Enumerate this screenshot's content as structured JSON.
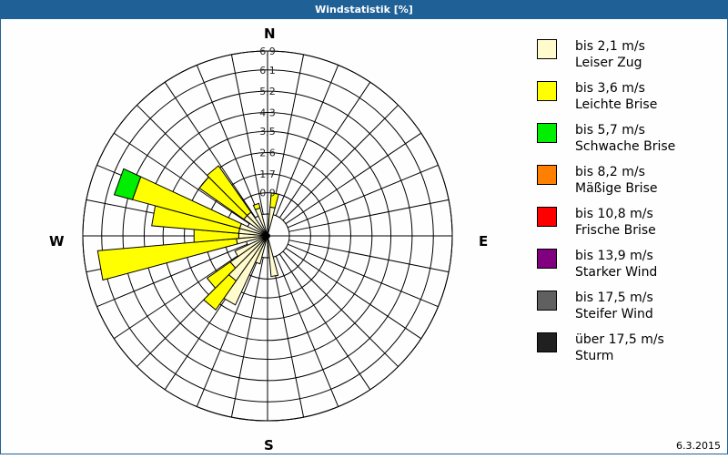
{
  "window": {
    "title": "Windstatistik [%]"
  },
  "compass": {
    "n": "N",
    "e": "E",
    "s": "S",
    "w": "W"
  },
  "footer": {
    "date": "6.3.2015"
  },
  "legend": [
    {
      "range": "bis 2,1 m/s",
      "name": "Leiser Zug",
      "color": "#fffbcc"
    },
    {
      "range": "bis 3,6 m/s",
      "name": "Leichte Brise",
      "color": "#ffff00"
    },
    {
      "range": "bis 5,7 m/s",
      "name": "Schwache Brise",
      "color": "#00ee00"
    },
    {
      "range": "bis 8,2 m/s",
      "name": "Mäßige Brise",
      "color": "#ff8000"
    },
    {
      "range": "bis 10,8 m/s",
      "name": "Frische Brise",
      "color": "#ff0000"
    },
    {
      "range": "bis 13,9 m/s",
      "name": "Starker Wind",
      "color": "#800080"
    },
    {
      "range": "bis 17,5 m/s",
      "name": "Steifer Wind",
      "color": "#606060"
    },
    {
      "range": "über 17,5 m/s",
      "name": "Sturm",
      "color": "#202020"
    }
  ],
  "chart_data": {
    "type": "wind-rose",
    "title": "Windstatistik [%]",
    "radial_unit": "%",
    "radial_ticks": [
      "0,9",
      "1,7",
      "2,6",
      "3,5",
      "4,3",
      "5,2",
      "6,1",
      "6,9"
    ],
    "radial_tick_values": [
      0.9,
      1.7,
      2.6,
      3.5,
      4.3,
      5.2,
      6.1,
      6.9
    ],
    "rlim": [
      0,
      6.9
    ],
    "sector_width_deg": 10,
    "series_names": [
      "Leiser Zug",
      "Leichte Brise",
      "Schwache Brise"
    ],
    "sectors": [
      {
        "dir": 10,
        "calm": 0.3,
        "light": 0.6,
        "gentle": 0.0
      },
      {
        "dir": 170,
        "calm": 0.8,
        "light": 0.0,
        "gentle": 0.0
      },
      {
        "dir": 200,
        "calm": 0.3,
        "light": 0.0,
        "gentle": 0.0
      },
      {
        "dir": 210,
        "calm": 2.3,
        "light": 0.0,
        "gentle": 0.0
      },
      {
        "dir": 220,
        "calm": 1.4,
        "light": 1.5,
        "gentle": 0.0
      },
      {
        "dir": 230,
        "calm": 1.0,
        "light": 1.2,
        "gentle": 0.0
      },
      {
        "dir": 240,
        "calm": 0.6,
        "light": 0.0,
        "gentle": 0.0
      },
      {
        "dir": 260,
        "calm": 0.4,
        "light": 5.9,
        "gentle": 0.0
      },
      {
        "dir": 270,
        "calm": 0.3,
        "light": 1.9,
        "gentle": 0.0
      },
      {
        "dir": 280,
        "calm": 0.3,
        "light": 3.7,
        "gentle": 0.0
      },
      {
        "dir": 290,
        "calm": 0.3,
        "light": 4.7,
        "gentle": 0.8
      },
      {
        "dir": 310,
        "calm": 0.3,
        "light": 2.3,
        "gentle": 0.0
      },
      {
        "dir": 320,
        "calm": 0.3,
        "light": 2.4,
        "gentle": 0.0
      },
      {
        "dir": 340,
        "calm": 0.3,
        "light": 0.2,
        "gentle": 0.0
      }
    ],
    "legend_position": "right",
    "grid": true
  }
}
